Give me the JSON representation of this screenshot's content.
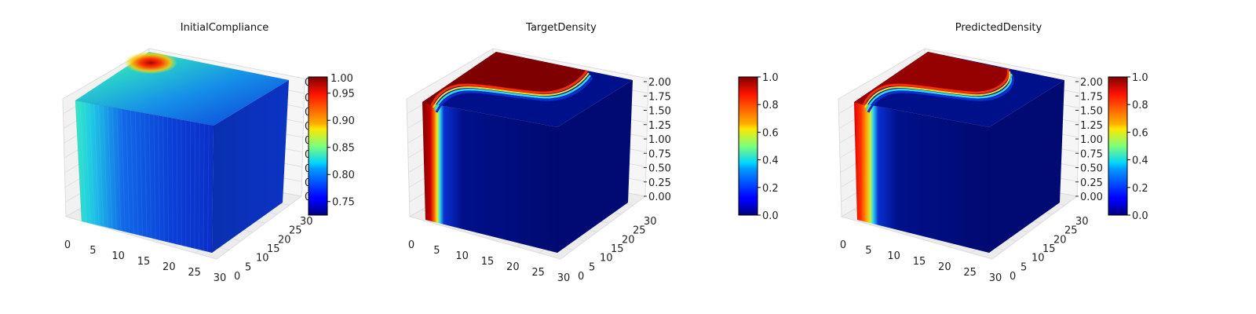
{
  "chart_data": [
    {
      "type": "3d-voxel",
      "title": "InitialCompliance",
      "colormap": "jet",
      "x_ticks": [
        "0",
        "5",
        "10",
        "15",
        "20",
        "25",
        "30"
      ],
      "y_ticks": [
        "0",
        "5",
        "10",
        "15",
        "20",
        "25",
        "30"
      ],
      "z_ticks": [
        "0",
        "0",
        "0",
        "0",
        "0",
        "0",
        "0",
        "0",
        "0"
      ],
      "z_ticks_note_visible": [
        "0",
        "0",
        "0",
        "0",
        "0",
        "0",
        "0",
        "0",
        "0"
      ],
      "colorbar": {
        "ticks": [
          "0.75",
          "0.80",
          "0.85",
          "0.90",
          "0.95",
          "1.00"
        ],
        "range": [
          0.725,
          0.98
        ]
      },
      "ylim": [
        0,
        30
      ],
      "xlim": [
        0,
        30
      ]
    },
    {
      "type": "3d-voxel",
      "title": "TargetDensity",
      "colormap": "jet",
      "x_ticks": [
        "0",
        "5",
        "10",
        "15",
        "20",
        "25",
        "30"
      ],
      "y_ticks": [
        "0",
        "5",
        "10",
        "15",
        "20",
        "25",
        "30"
      ],
      "z_ticks": [
        "0.00",
        "0.25",
        "0.50",
        "0.75",
        "1.00",
        "1.25",
        "1.50",
        "1.75",
        "2.00"
      ],
      "colorbar": {
        "ticks": [
          "0.0",
          "0.2",
          "0.4",
          "0.6",
          "0.8",
          "1.0"
        ],
        "range": [
          0,
          1
        ]
      },
      "zlim": [
        0,
        2
      ]
    },
    {
      "type": "3d-voxel",
      "title": "PredictedDensity",
      "colormap": "jet",
      "x_ticks": [
        "0",
        "5",
        "10",
        "15",
        "20",
        "25",
        "30"
      ],
      "y_ticks": [
        "0",
        "5",
        "10",
        "15",
        "20",
        "25",
        "30"
      ],
      "z_ticks": [
        "0.00",
        "0.25",
        "0.50",
        "0.75",
        "1.00",
        "1.25",
        "1.50",
        "1.75",
        "2.00"
      ],
      "colorbar": {
        "ticks": [
          "0.0",
          "0.2",
          "0.4",
          "0.6",
          "0.8",
          "1.0"
        ],
        "range": [
          0,
          1
        ]
      },
      "zlim": [
        0,
        2
      ]
    }
  ]
}
